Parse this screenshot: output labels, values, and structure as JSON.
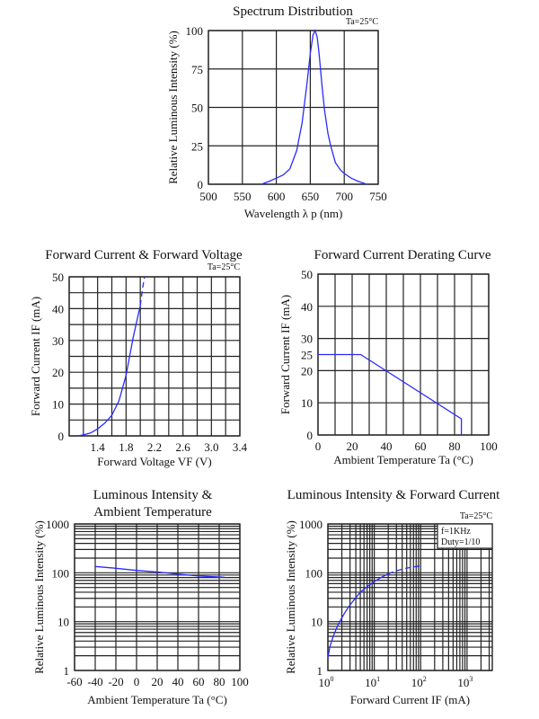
{
  "chart_data": [
    {
      "id": "spectrum",
      "type": "line",
      "title": "Spectrum Distribution",
      "note": "Ta=25°C",
      "xlabel": "Wavelength  λ p (nm)",
      "ylabel": "Relative Luminous Intensity (%)",
      "xlim": [
        500,
        750
      ],
      "ylim": [
        0,
        100
      ],
      "xscale": "linear",
      "yscale": "linear",
      "xticks": [
        500,
        550,
        600,
        650,
        700,
        750
      ],
      "yticks": [
        0,
        25,
        50,
        75,
        100
      ],
      "xgrid": [
        500,
        550,
        600,
        650,
        700,
        750
      ],
      "ygrid": [
        0,
        25,
        50,
        75,
        100
      ],
      "grid": true,
      "series": [
        {
          "name": "Spectrum",
          "color": "#2b2bff",
          "dashed_from": null,
          "x": [
            578,
            590,
            600,
            610,
            620,
            630,
            638,
            645,
            650,
            654,
            657,
            660,
            663,
            667,
            671,
            676,
            680,
            687,
            695,
            700,
            710,
            720,
            733
          ],
          "y": [
            0,
            2,
            4,
            6,
            10,
            22,
            40,
            65,
            85,
            97,
            100,
            96,
            85,
            65,
            48,
            33,
            25,
            14,
            9,
            7,
            4,
            2,
            0
          ]
        }
      ]
    },
    {
      "id": "forward-voltage",
      "type": "line",
      "title": "Forward Current & Forward Voltage",
      "note": "Ta=25°C",
      "xlabel": "Forward Voltage  VF (V)",
      "ylabel": "Forward Current IF (mA)",
      "xlim": [
        1.0,
        3.4
      ],
      "ylim": [
        0,
        50
      ],
      "xscale": "linear",
      "yscale": "linear",
      "xticks": [
        1.4,
        1.8,
        2.2,
        2.6,
        3.0,
        3.4
      ],
      "xticklabels": [
        "1.4",
        "1.8",
        "2.2",
        "2.6",
        "3.0",
        "3.4"
      ],
      "yticks": [
        0,
        10,
        20,
        30,
        40,
        50
      ],
      "xgrid": [
        1.0,
        1.2,
        1.4,
        1.6,
        1.8,
        2.0,
        2.2,
        2.4,
        2.6,
        2.8,
        3.0,
        3.2,
        3.4
      ],
      "ygrid": [
        0,
        5,
        10,
        15,
        20,
        25,
        30,
        35,
        40,
        45,
        50
      ],
      "grid": true,
      "series": [
        {
          "name": "IF-VF",
          "color": "#2b2bff",
          "x": [
            1.12,
            1.2,
            1.3,
            1.4,
            1.5,
            1.6,
            1.7,
            1.8,
            1.85,
            1.9,
            1.95,
            2.0
          ],
          "y": [
            0,
            0.3,
            0.9,
            2.2,
            4,
            6.5,
            11,
            19,
            25,
            31,
            36,
            41
          ]
        },
        {
          "name": "IF-VF (dashed)",
          "color": "#2b2bff",
          "dashed": true,
          "x": [
            2.0,
            2.03,
            2.06
          ],
          "y": [
            41,
            46,
            50
          ]
        }
      ]
    },
    {
      "id": "derating",
      "type": "line",
      "title": "Forward Current Derating Curve",
      "xlabel": "Ambient Temperature Ta (°C)",
      "ylabel": "Forward Current IF (mA)",
      "xlim": [
        0,
        100
      ],
      "ylim": [
        0,
        50
      ],
      "xscale": "linear",
      "yscale": "linear",
      "xticks": [
        0,
        20,
        40,
        60,
        80,
        100
      ],
      "yticks": [
        0,
        10,
        20,
        25,
        30,
        40,
        50
      ],
      "xgrid": [
        0,
        10,
        20,
        30,
        40,
        50,
        60,
        70,
        80,
        90,
        100
      ],
      "ygrid": [
        0,
        10,
        20,
        30,
        40,
        50
      ],
      "grid": true,
      "series": [
        {
          "name": "Derating",
          "color": "#2b2bff",
          "x": [
            0,
            25,
            84,
            84
          ],
          "y": [
            25,
            25,
            5,
            0
          ]
        }
      ]
    },
    {
      "id": "lum-temp",
      "type": "line",
      "title": "Luminous Intensity &",
      "title2": "Ambient Temperature",
      "xlabel": "Ambient Temperature Ta (°C)",
      "ylabel": "Relative Luminous Intensity (%)",
      "xlim": [
        -60,
        100
      ],
      "ylim": [
        1,
        1000
      ],
      "xscale": "linear",
      "yscale": "log",
      "xticks": [
        -60,
        -40,
        -20,
        0,
        20,
        40,
        60,
        80,
        100
      ],
      "yticks": [
        1,
        10,
        100,
        1000
      ],
      "xgrid": [
        -60,
        -40,
        -20,
        0,
        20,
        40,
        60,
        80,
        100
      ],
      "grid": true,
      "series": [
        {
          "name": "Iv-Ta",
          "color": "#2b2bff",
          "x": [
            -40,
            -20,
            0,
            20,
            40,
            60,
            85
          ],
          "y": [
            135,
            124,
            112,
            104,
            94,
            86,
            81
          ]
        }
      ]
    },
    {
      "id": "lum-if",
      "type": "line",
      "title": "Luminous Intensity & Forward Current",
      "note": "Ta=25°C",
      "legend": [
        "f=1KHz",
        "Duty=1/10"
      ],
      "legend_position": "top-right",
      "xlabel": "Forward Current IF (mA)",
      "ylabel": "Relative Luminous Intensity (%)",
      "xlim": [
        1,
        3500
      ],
      "ylim": [
        1,
        1000
      ],
      "xscale": "log",
      "yscale": "log",
      "xticks": [
        1,
        10,
        100,
        1000
      ],
      "xticklabels_base": [
        "10",
        "10",
        "10",
        "10"
      ],
      "xticklabels_exp": [
        "0",
        "1",
        "2",
        "3"
      ],
      "yticks": [
        1,
        10,
        100,
        1000
      ],
      "grid": true,
      "series": [
        {
          "name": "Iv-IF",
          "color": "#2b2bff",
          "x": [
            1,
            1.1,
            1.3,
            1.6,
            2,
            2.5,
            3,
            4,
            5,
            7,
            10,
            14,
            20
          ],
          "y": [
            1.8,
            3,
            5,
            8,
            12,
            17,
            22,
            31,
            40,
            52,
            66,
            80,
            95
          ]
        },
        {
          "name": "Iv-IF (dashed)",
          "color": "#2b2bff",
          "dashed": true,
          "x": [
            20,
            30,
            50,
            80,
            110
          ],
          "y": [
            95,
            110,
            125,
            135,
            142
          ]
        }
      ]
    }
  ]
}
